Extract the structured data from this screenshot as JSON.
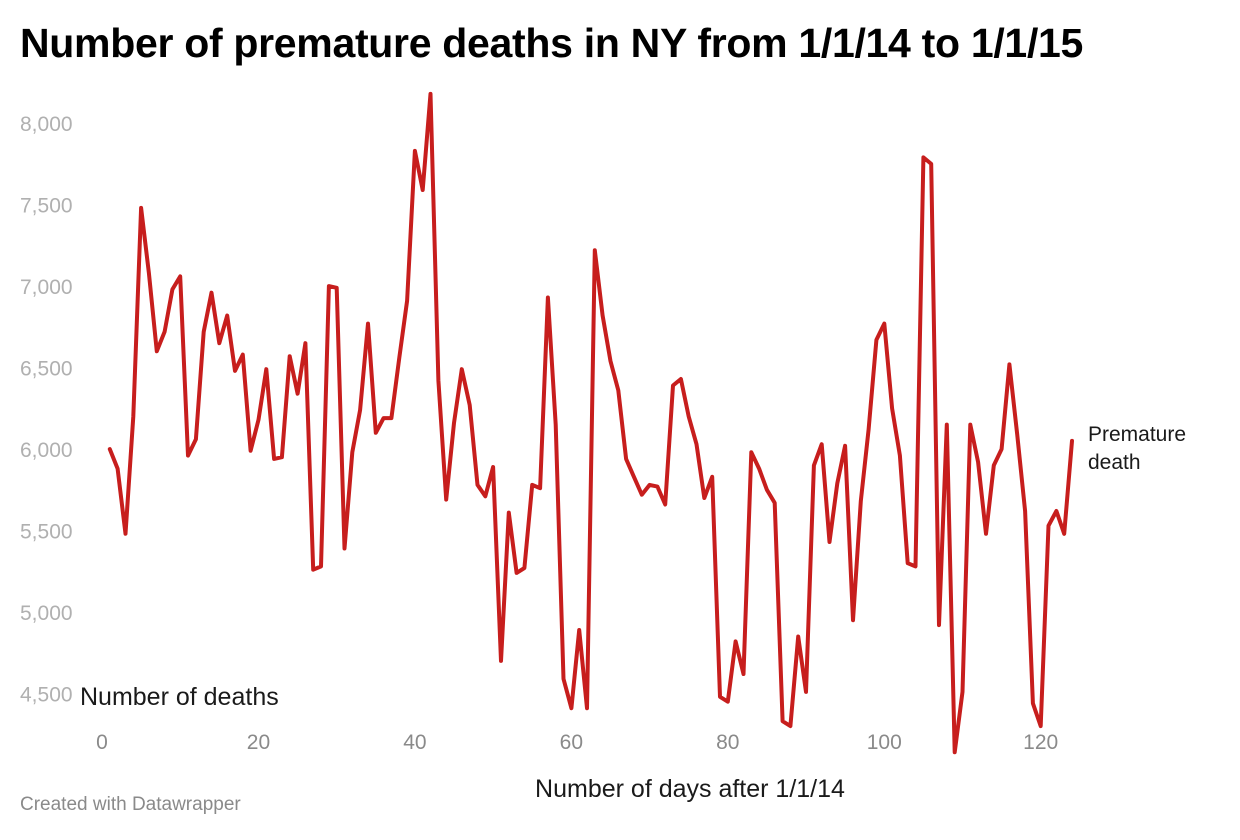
{
  "chart_data": {
    "type": "line",
    "title": "Number of premature deaths in NY from 1/1/14 to 1/1/15",
    "xlabel": "Number of days after 1/1/14",
    "ylabel": "Number of deaths",
    "xlim": [
      0,
      124
    ],
    "ylim": [
      4150,
      8200
    ],
    "x_ticks": [
      0,
      20,
      40,
      60,
      80,
      100,
      120
    ],
    "y_ticks": [
      4500,
      5000,
      5500,
      6000,
      6500,
      7000,
      7500,
      8000
    ],
    "grid": false,
    "series": [
      {
        "name": "Premature death",
        "color": "#c71e1d",
        "label": "Premature death",
        "values": [
          6000,
          5880,
          5480,
          6200,
          7480,
          7080,
          6600,
          6720,
          6980,
          7060,
          5960,
          6060,
          6720,
          6960,
          6650,
          6820,
          6480,
          6580,
          5990,
          6180,
          6490,
          5940,
          5950,
          6570,
          6340,
          6650,
          5260,
          5280,
          7000,
          6990,
          5390,
          5980,
          6240,
          6770,
          6100,
          6190,
          6190,
          6560,
          6910,
          7830,
          7590,
          8180,
          6420,
          5690,
          6160,
          6490,
          6270,
          5780,
          5710,
          5890,
          4700,
          5610,
          5240,
          5270,
          5780,
          5760,
          6930,
          6150,
          4590,
          4410,
          4890,
          4410,
          7220,
          6820,
          6540,
          6360,
          5940,
          5830,
          5720,
          5780,
          5770,
          5660,
          6390,
          6430,
          6200,
          6030,
          5700,
          5830,
          4480,
          4450,
          4820,
          4620,
          5980,
          5880,
          5750,
          5670,
          4330,
          4300,
          4850,
          4510,
          5900,
          6030,
          5430,
          5790,
          6020,
          4950,
          5680,
          6120,
          6670,
          6770,
          6250,
          5960,
          5300,
          5280,
          7790,
          7750,
          4920,
          6150,
          4140,
          4510,
          6150,
          5920,
          5480,
          5900,
          6000,
          6520,
          6090,
          5620,
          4440,
          4300,
          5530,
          5620,
          5480,
          6050
        ]
      }
    ]
  },
  "footer": "Created with Datawrapper"
}
